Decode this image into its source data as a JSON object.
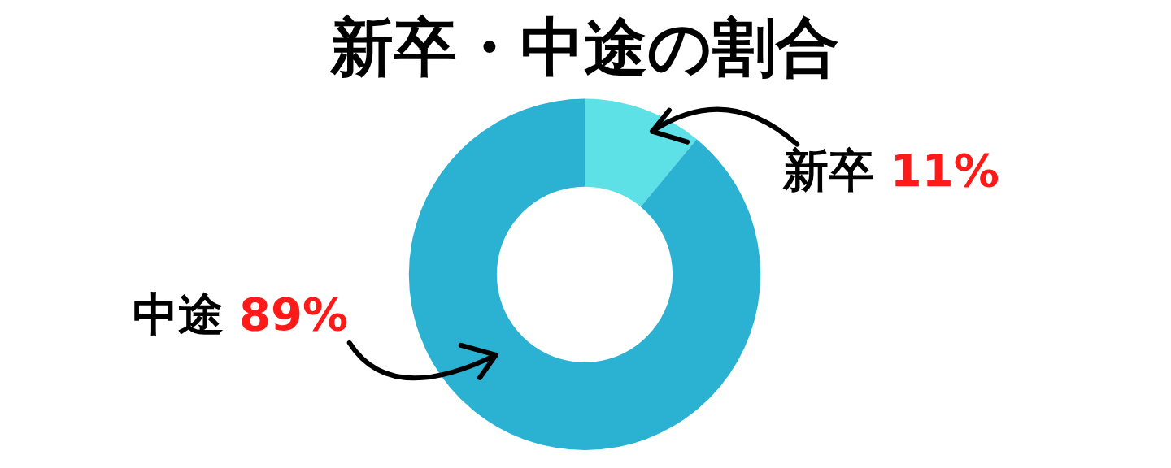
{
  "chart_data": {
    "type": "donut",
    "title": "新卒・中途の割合",
    "categories": [
      "新卒",
      "中途"
    ],
    "values": [
      11,
      89
    ],
    "colors": [
      "#5de0e6",
      "#2bb2d3"
    ],
    "value_labels": [
      "11%",
      "89%"
    ],
    "legend": false
  }
}
